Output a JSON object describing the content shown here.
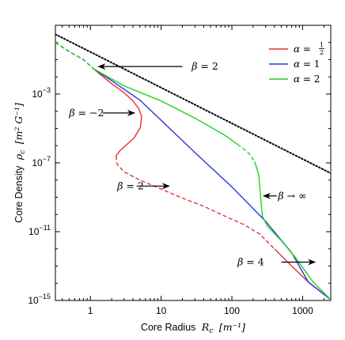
{
  "chart_data": {
    "type": "line",
    "title": "",
    "xlabel": "Core Radius",
    "xlabel_symbol": "R",
    "xlabel_sub": "c",
    "xlabel_unit": "[m⁻¹]",
    "ylabel": "Core Density",
    "ylabel_symbol": "ρ",
    "ylabel_sub": "c",
    "ylabel_unit": "[m² G⁻¹]",
    "xscale": "log",
    "yscale": "log",
    "xlim": [
      0.32,
      2500
    ],
    "ylim": [
      1e-15,
      10.0
    ],
    "x_ticks": [
      {
        "value": 1,
        "label": "1"
      },
      {
        "value": 10,
        "label": "10"
      },
      {
        "value": 100,
        "label": "100"
      },
      {
        "value": 1000,
        "label": "1000"
      }
    ],
    "y_ticks": [
      {
        "value": 0.001,
        "base": "10",
        "exp": "−3"
      },
      {
        "value": 1e-07,
        "base": "10",
        "exp": "−7"
      },
      {
        "value": 1e-11,
        "base": "10",
        "exp": "−11"
      },
      {
        "value": 1e-15,
        "base": "10",
        "exp": "−15"
      }
    ],
    "grid": false,
    "legend_position": "top-right",
    "series": [
      {
        "name": "α = ½",
        "legend_alpha": "α =",
        "legend_value": "1/2",
        "color": "#e8303a",
        "segments": [
          {
            "style": "dashed",
            "points": [
              [
                0.32,
                1.0
              ],
              [
                0.5,
                0.3
              ],
              [
                0.8,
                0.1
              ],
              [
                1.1,
                0.03
              ]
            ]
          },
          {
            "style": "solid",
            "points": [
              [
                1.1,
                0.03
              ],
              [
                2.0,
                0.004
              ],
              [
                3.0,
                0.0012
              ],
              [
                4.0,
                0.0004
              ],
              [
                4.8,
                0.00015
              ],
              [
                5.3,
                5e-05
              ],
              [
                5.1,
                1.2e-05
              ],
              [
                4.2,
                3e-06
              ],
              [
                3.3,
                1.2e-06
              ],
              [
                2.6,
                5e-07
              ],
              [
                2.3,
                2.5e-07
              ]
            ]
          },
          {
            "style": "dashed",
            "points": [
              [
                2.3,
                2.5e-07
              ],
              [
                2.4,
                8e-08
              ],
              [
                3.0,
                3e-08
              ],
              [
                5.0,
                1e-08
              ],
              [
                10,
                3e-09
              ],
              [
                20,
                9e-10
              ],
              [
                40,
                3e-10
              ],
              [
                80,
                8e-11
              ],
              [
                150,
                2.5e-11
              ],
              [
                250,
                7e-12
              ],
              [
                400,
                1e-12
              ]
            ]
          },
          {
            "style": "solid",
            "points": [
              [
                400,
                1e-12
              ],
              [
                700,
                1e-13
              ],
              [
                1200,
                1.2e-14
              ],
              [
                2500,
                1.1e-15
              ]
            ]
          }
        ]
      },
      {
        "name": "α = 1",
        "legend_alpha": "α =",
        "legend_value": "1",
        "color": "#2a35d8",
        "segments": [
          {
            "style": "dashed",
            "points": [
              [
                0.32,
                1.0
              ],
              [
                0.5,
                0.3
              ],
              [
                0.8,
                0.1
              ],
              [
                1.1,
                0.03
              ]
            ]
          },
          {
            "style": "solid",
            "points": [
              [
                1.1,
                0.03
              ],
              [
                2,
                0.006
              ],
              [
                5,
                0.00045
              ],
              [
                10,
                3e-05
              ],
              [
                30,
                4e-07
              ],
              [
                100,
                4e-09
              ],
              [
                300,
                4e-11
              ],
              [
                700,
                6e-13
              ],
              [
                1200,
                1.2e-14
              ],
              [
                2500,
                1.1e-15
              ]
            ]
          }
        ]
      },
      {
        "name": "α = 2",
        "legend_alpha": "α =",
        "legend_value": "2",
        "color": "#22d022",
        "segments": [
          {
            "style": "dashed",
            "points": [
              [
                0.32,
                1.0
              ],
              [
                0.5,
                0.3
              ],
              [
                0.8,
                0.1
              ],
              [
                1.1,
                0.03
              ]
            ]
          },
          {
            "style": "solid",
            "points": [
              [
                1.1,
                0.03
              ],
              [
                3,
                0.003
              ],
              [
                10,
                0.0004
              ],
              [
                30,
                4e-05
              ],
              [
                80,
                4e-06
              ],
              [
                120,
                1.2e-06
              ]
            ]
          },
          {
            "style": "dashed",
            "points": [
              [
                120,
                1.2e-06
              ],
              [
                170,
                4e-07
              ],
              [
                210,
                1.2e-07
              ]
            ]
          },
          {
            "style": "solid",
            "points": [
              [
                210,
                1.2e-07
              ],
              [
                240,
                2e-08
              ],
              [
                255,
                1e-09
              ],
              [
                270,
                8e-11
              ],
              [
                320,
                2e-11
              ],
              [
                500,
                3e-12
              ],
              [
                800,
                3e-13
              ],
              [
                1400,
                1.2e-14
              ],
              [
                2500,
                1.1e-15
              ]
            ]
          }
        ]
      },
      {
        "name": "",
        "color": "#000000",
        "segments": [
          {
            "style": "dotted",
            "points": [
              [
                0.32,
                3.0
              ],
              [
                2500,
                2.5e-08
              ]
            ]
          }
        ]
      }
    ],
    "annotations": [
      {
        "text_symbol": "β",
        "text_rest": " = 2",
        "text_x": 27.0,
        "text_y": 0.04,
        "arrow_from": [
          20,
          0.04
        ],
        "arrow_to": [
          1.3,
          0.04
        ]
      },
      {
        "text_symbol": "β",
        "text_rest": " = −2",
        "text_x": 0.5,
        "text_y": 8e-05,
        "arrow_from": [
          1.5,
          8e-05
        ],
        "arrow_to": [
          4.2,
          8e-05
        ]
      },
      {
        "text_symbol": "β",
        "text_rest": " = 2",
        "text_x": 2.4,
        "text_y": 4.5e-09,
        "arrow_from": [
          4.5,
          4.5e-09
        ],
        "arrow_to": [
          13,
          4.5e-09
        ]
      },
      {
        "text_symbol": "β",
        "text_rest": " → ∞",
        "text_x": 450,
        "text_y": 1.2e-09,
        "arrow_from": [
          430,
          1.2e-09
        ],
        "arrow_to": [
          280,
          1.2e-09
        ]
      },
      {
        "text_symbol": "β",
        "text_rest": " = 4",
        "text_x": 120,
        "text_y": 1.7e-13,
        "arrow_from": [
          500,
          1.7e-13
        ],
        "arrow_to": [
          1500,
          1.7e-13
        ]
      }
    ]
  }
}
